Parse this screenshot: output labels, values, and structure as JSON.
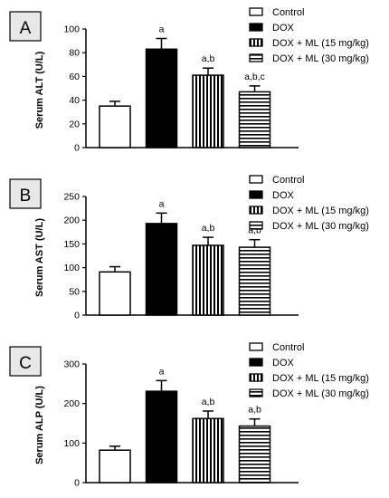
{
  "legend": [
    "Control",
    "DOX",
    "DOX + ML (15 mg/kg)",
    "DOX + ML (30 mg/kg)"
  ],
  "colors": {
    "control": "#ffffff",
    "dox": "#000000",
    "stroke": "#000000",
    "panel_label_bg": "#e8e8e8"
  },
  "chart_data": [
    {
      "panel": "A",
      "type": "bar",
      "ylabel": "Serum ALT (U/L)",
      "ylim": [
        0,
        100
      ],
      "yticks": [
        0,
        20,
        40,
        60,
        80,
        100
      ],
      "categories": [
        "Control",
        "DOX",
        "DOX + ML (15 mg/kg)",
        "DOX + ML (30 mg/kg)"
      ],
      "values": [
        35,
        83,
        61,
        47
      ],
      "errors": [
        4,
        9,
        6,
        5
      ],
      "annotations": [
        "",
        "a",
        "a,b",
        "a,b,c"
      ]
    },
    {
      "panel": "B",
      "type": "bar",
      "ylabel": "Serum AST (U/L)",
      "ylim": [
        0,
        250
      ],
      "yticks": [
        0,
        50,
        100,
        150,
        200,
        250
      ],
      "categories": [
        "Control",
        "DOX",
        "DOX + ML (15 mg/kg)",
        "DOX + ML (30 mg/kg)"
      ],
      "values": [
        91,
        193,
        147,
        143
      ],
      "errors": [
        11,
        22,
        17,
        16
      ],
      "annotations": [
        "",
        "a",
        "a,b",
        "a,b"
      ]
    },
    {
      "panel": "C",
      "type": "bar",
      "ylabel": "Serum ALP (U/L)",
      "ylim": [
        0,
        300
      ],
      "yticks": [
        0,
        100,
        200,
        300
      ],
      "categories": [
        "Control",
        "DOX",
        "DOX + ML (15 mg/kg)",
        "DOX + ML (30 mg/kg)"
      ],
      "values": [
        82,
        231,
        162,
        143
      ],
      "errors": [
        10,
        27,
        19,
        18
      ],
      "annotations": [
        "",
        "a",
        "a,b",
        "a,b"
      ]
    }
  ]
}
